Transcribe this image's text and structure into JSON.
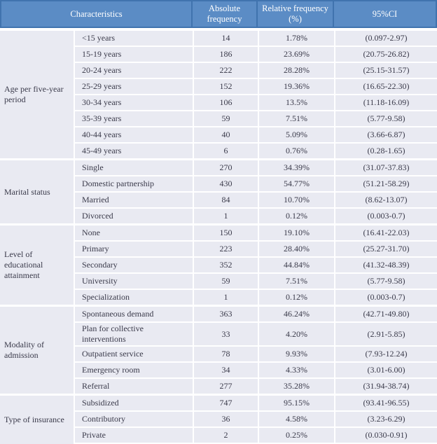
{
  "colors": {
    "header_bg": "#5b8cc5",
    "header_border": "#4073ae",
    "header_text": "#ffffff",
    "row_bg": "#e9eaf2",
    "separator": "#ffffff",
    "body_text": "#3a3a4a"
  },
  "table": {
    "headers": {
      "characteristics": "Characteristics",
      "absolute_frequency_line1": "Absolute",
      "absolute_frequency_line2": "frequency",
      "relative_frequency_line1": "Relative frequency",
      "relative_frequency_line2": "(%)",
      "ci": "95%CI"
    },
    "groups": [
      {
        "label": "Age per five-year period",
        "rows": [
          {
            "characteristic": "<15 years",
            "absolute": "14",
            "relative": "1.78%",
            "ci": "(0.097-2.97)"
          },
          {
            "characteristic": "15-19 years",
            "absolute": "186",
            "relative": "23.69%",
            "ci": "(20.75-26.82)"
          },
          {
            "characteristic": "20-24 years",
            "absolute": "222",
            "relative": "28.28%",
            "ci": "(25.15-31.57)"
          },
          {
            "characteristic": "25-29 years",
            "absolute": "152",
            "relative": "19.36%",
            "ci": "(16.65-22.30)"
          },
          {
            "characteristic": "30-34 years",
            "absolute": "106",
            "relative": "13.5%",
            "ci": "(11.18-16.09)"
          },
          {
            "characteristic": "35-39 years",
            "absolute": "59",
            "relative": "7.51%",
            "ci": "(5.77-9.58)"
          },
          {
            "characteristic": "40-44 years",
            "absolute": "40",
            "relative": "5.09%",
            "ci": "(3.66-6.87)"
          },
          {
            "characteristic": "45-49 years",
            "absolute": "6",
            "relative": "0.76%",
            "ci": "(0.28-1.65)"
          }
        ]
      },
      {
        "label": "Marital status",
        "rows": [
          {
            "characteristic": "Single",
            "absolute": "270",
            "relative": "34.39%",
            "ci": "(31.07-37.83)"
          },
          {
            "characteristic": "Domestic partnership",
            "absolute": "430",
            "relative": "54.77%",
            "ci": "(51.21-58.29)"
          },
          {
            "characteristic": "Married",
            "absolute": "84",
            "relative": "10.70%",
            "ci": "(8.62-13.07)"
          },
          {
            "characteristic": "Divorced",
            "absolute": "1",
            "relative": "0.12%",
            "ci": "(0.003-0.7)"
          }
        ]
      },
      {
        "label": "Level of educational attainment",
        "rows": [
          {
            "characteristic": "None",
            "absolute": "150",
            "relative": "19.10%",
            "ci": "(16.41-22.03)"
          },
          {
            "characteristic": "Primary",
            "absolute": "223",
            "relative": "28.40%",
            "ci": "(25.27-31.70)"
          },
          {
            "characteristic": "Secondary",
            "absolute": "352",
            "relative": "44.84%",
            "ci": "(41.32-48.39)"
          },
          {
            "characteristic": "University",
            "absolute": "59",
            "relative": "7.51%",
            "ci": "(5.77-9.58)"
          },
          {
            "characteristic": "Specialization",
            "absolute": "1",
            "relative": "0.12%",
            "ci": "(0.003-0.7)"
          }
        ]
      },
      {
        "label": "Modality of admission",
        "rows": [
          {
            "characteristic": "Spontaneous demand",
            "absolute": "363",
            "relative": "46.24%",
            "ci": "(42.71-49.80)"
          },
          {
            "characteristic": "Plan for collective interventions",
            "absolute": "33",
            "relative": "4.20%",
            "ci": "(2.91-5.85)"
          },
          {
            "characteristic": "Outpatient service",
            "absolute": "78",
            "relative": "9.93%",
            "ci": "(7.93-12.24)"
          },
          {
            "characteristic": "Emergency room",
            "absolute": "34",
            "relative": "4.33%",
            "ci": "(3.01-6.00)"
          },
          {
            "characteristic": "Referral",
            "absolute": "277",
            "relative": "35.28%",
            "ci": "(31.94-38.74)"
          }
        ]
      },
      {
        "label": "Type of insurance",
        "rows": [
          {
            "characteristic": "Subsidized",
            "absolute": "747",
            "relative": "95.15%",
            "ci": "(93.41-96.55)"
          },
          {
            "characteristic": "Contributory",
            "absolute": "36",
            "relative": "4.58%",
            "ci": "(3.23-6.29)"
          },
          {
            "characteristic": "Private",
            "absolute": "2",
            "relative": "0.25%",
            "ci": "(0.030-0.91)"
          }
        ]
      }
    ]
  }
}
